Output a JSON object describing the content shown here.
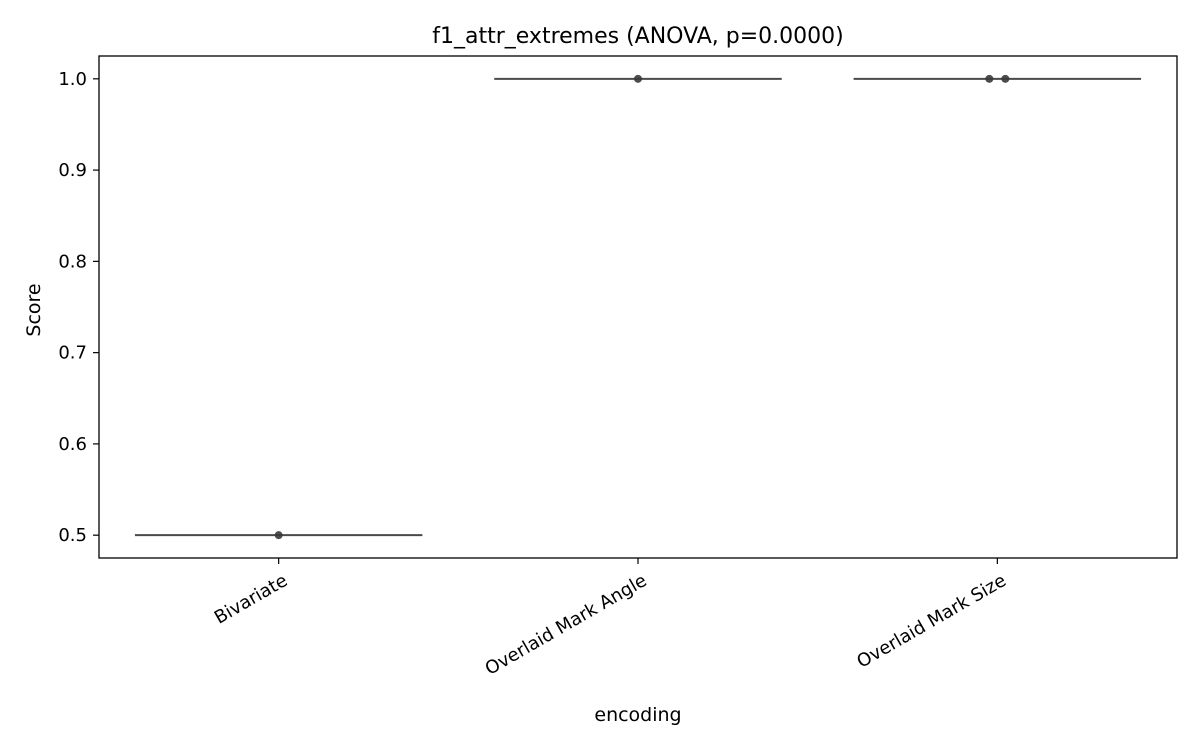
{
  "chart_data": {
    "type": "box",
    "title": "f1_attr_extremes (ANOVA, p=0.0000)",
    "xlabel": "encoding",
    "ylabel": "Score",
    "ylim": [
      0.475,
      1.025
    ],
    "yticks": [
      0.5,
      0.6,
      0.7,
      0.8,
      0.9,
      1.0
    ],
    "ytick_labels": [
      "0.5",
      "0.6",
      "0.7",
      "0.8",
      "0.9",
      "1.0"
    ],
    "grid": false,
    "categories": [
      "Bivariate",
      "Overlaid Mark Angle",
      "Overlaid Mark Size"
    ],
    "boxes": [
      {
        "category": "Bivariate",
        "min": 0.5,
        "q1": 0.5,
        "median": 0.5,
        "q3": 0.5,
        "max": 0.5,
        "points": [
          0.5
        ]
      },
      {
        "category": "Overlaid Mark Angle",
        "min": 1.0,
        "q1": 1.0,
        "median": 1.0,
        "q3": 1.0,
        "max": 1.0,
        "points": [
          1.0
        ]
      },
      {
        "category": "Overlaid Mark Size",
        "min": 1.0,
        "q1": 1.0,
        "median": 1.0,
        "q3": 1.0,
        "max": 1.0,
        "points": [
          1.0,
          1.0
        ]
      }
    ],
    "colors": {
      "box_line": "#4a4a4a",
      "point": "#3a3a3a",
      "frame": "#000000"
    }
  }
}
